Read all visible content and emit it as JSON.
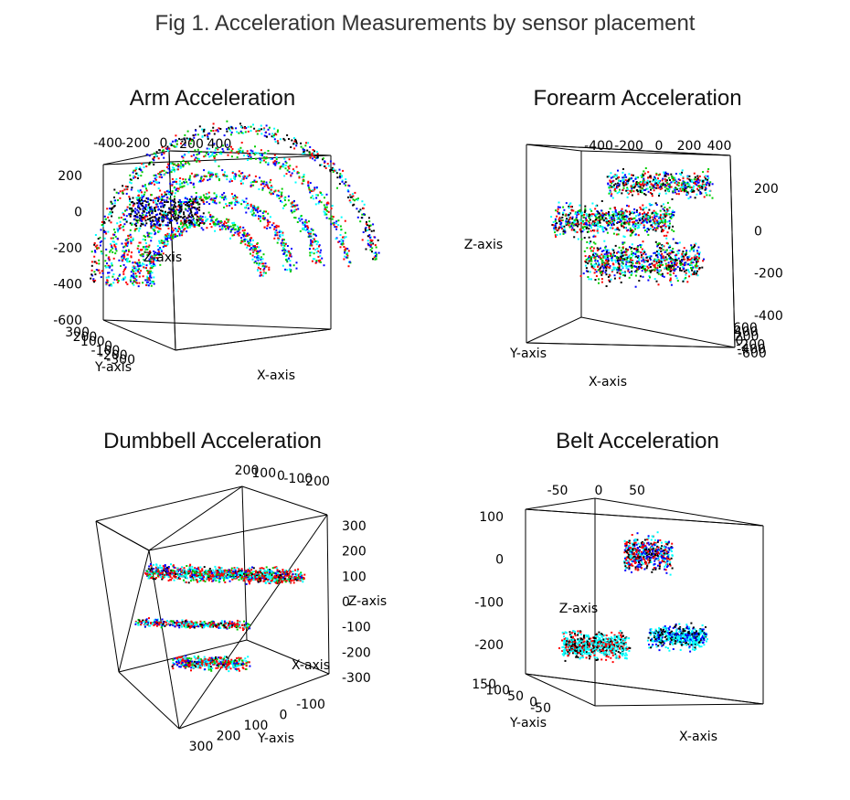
{
  "figure_title": "Fig 1. Acceleration Measurements by sensor placement",
  "series_colors": [
    "#000000",
    "#ff0000",
    "#00cd00",
    "#0000ff",
    "#00ffff"
  ],
  "chart_data": [
    {
      "type": "scatter3d",
      "title": "Arm Acceleration",
      "xlabel": "X-axis",
      "ylabel": "Y-axis",
      "zlabel": "Z-axis",
      "x_ticks": [
        "-400",
        "-200",
        "0",
        "200",
        "400"
      ],
      "y_ticks": [
        "-300",
        "-200",
        "-100",
        "0",
        "100",
        "200",
        "300"
      ],
      "z_ticks": [
        "200",
        "0",
        "-200",
        "-400",
        "-600"
      ],
      "xlim": [
        -400,
        400
      ],
      "ylim": [
        -300,
        300
      ],
      "zlim": [
        -600,
        250
      ],
      "clusters": [
        {
          "cx": 0.05,
          "cy": 0.55,
          "cz": 0.65,
          "spread": 0.3,
          "n": 900,
          "shape": "arc"
        },
        {
          "cx": 0.2,
          "cy": 0.6,
          "cz": 0.4,
          "spread": 0.25,
          "n": 500,
          "shape": "arc2"
        }
      ]
    },
    {
      "type": "scatter3d",
      "title": "Forearm Acceleration",
      "xlabel": "X-axis",
      "ylabel": "Y-axis",
      "zlabel": "Z-axis",
      "x_ticks": [
        "-400",
        "-200",
        "0",
        "200",
        "400"
      ],
      "y_ticks": [
        "600",
        "400",
        "200",
        "0",
        "-200",
        "-400",
        "-600"
      ],
      "z_ticks": [
        "200",
        "0",
        "-200",
        "-400"
      ],
      "xlim": [
        -400,
        400
      ],
      "ylim": [
        -600,
        600
      ],
      "zlim": [
        -400,
        300
      ],
      "clusters": []
    },
    {
      "type": "scatter3d",
      "title": "Dumbbell Acceleration",
      "xlabel": "X-axis",
      "ylabel": "Y-axis",
      "zlabel": "Z-axis",
      "x_ticks": [
        "200",
        "100",
        "0",
        "-100",
        "-200"
      ],
      "y_ticks": [
        "300",
        "200",
        "100",
        "0",
        "-100"
      ],
      "z_ticks": [
        "300",
        "200",
        "100",
        "0",
        "-100",
        "-200",
        "-300"
      ],
      "xlim": [
        -200,
        200
      ],
      "ylim": [
        -100,
        300
      ],
      "zlim": [
        -300,
        300
      ],
      "clusters": []
    },
    {
      "type": "scatter3d",
      "title": "Belt Acceleration",
      "xlabel": "X-axis",
      "ylabel": "Y-axis",
      "zlabel": "Z-axis",
      "x_ticks": [
        "-50",
        "0",
        "50"
      ],
      "y_ticks": [
        "150",
        "100",
        "50",
        "0",
        "-50"
      ],
      "z_ticks": [
        "100",
        "0",
        "-100",
        "-200"
      ],
      "xlim": [
        -50,
        50
      ],
      "ylim": [
        -50,
        150
      ],
      "zlim": [
        -250,
        120
      ],
      "clusters": []
    }
  ]
}
